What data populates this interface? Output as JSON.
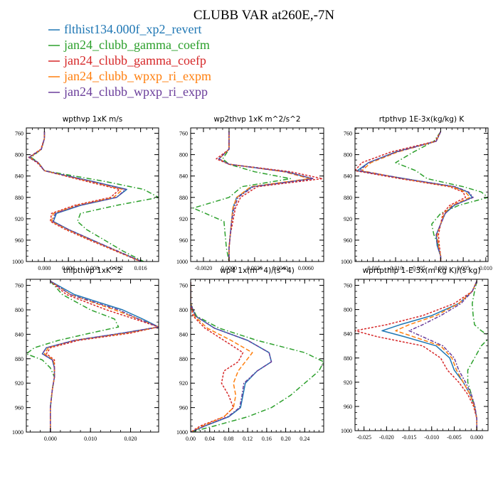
{
  "title": "CLUBB VAR at260E,-7N",
  "legend": [
    {
      "label": "flthist134.000f_xp2_revert",
      "color": "#1f77b4"
    },
    {
      "label": "jan24_clubb_gamma_coefm",
      "color": "#2ca02c"
    },
    {
      "label": "jan24_clubb_gamma_coefp",
      "color": "#d62728"
    },
    {
      "label": "jan24_clubb_wpxp_ri_expm",
      "color": "#ff7f0e"
    },
    {
      "label": "jan24_clubb_wpxp_ri_expp",
      "color": "#6a3d9a"
    }
  ],
  "chart_data": [
    {
      "type": "line",
      "title": "wpthvp  1xK m/s",
      "xlim": [
        -0.003,
        0.019
      ],
      "ylim": [
        1000,
        750
      ],
      "xticks": [
        "0.000",
        "0.004",
        "0.008",
        "0.012",
        "0.016"
      ],
      "xtick_values": [
        0.0,
        0.004,
        0.008,
        0.012,
        0.016
      ],
      "yticks": [
        "760",
        "800",
        "840",
        "880",
        "920",
        "960",
        "1000"
      ],
      "ytick_values": [
        760,
        800,
        840,
        880,
        920,
        960,
        1000
      ],
      "p": [
        757,
        770,
        790,
        805,
        815,
        830,
        850,
        865,
        880,
        895,
        910,
        925,
        940,
        960,
        980,
        1000
      ],
      "series": [
        {
          "values": [
            0.0,
            0.0,
            -0.0005,
            -0.0025,
            -0.001,
            0.0,
            0.008,
            0.0137,
            0.012,
            0.006,
            0.002,
            0.0015,
            0.004,
            0.008,
            0.012,
            0.0162
          ]
        },
        {
          "values": [
            0.0,
            0.0,
            -0.0005,
            -0.0022,
            -0.001,
            0.0,
            0.01,
            0.0165,
            0.019,
            0.012,
            0.006,
            0.0055,
            0.007,
            0.01,
            0.013,
            0.0165
          ]
        },
        {
          "values": [
            0.0,
            0.0,
            -0.0006,
            -0.0026,
            -0.0012,
            0.0,
            0.007,
            0.0125,
            0.011,
            0.005,
            0.0012,
            0.001,
            0.0035,
            0.0075,
            0.0118,
            0.016
          ]
        },
        {
          "values": [
            0.0,
            0.0,
            -0.0005,
            -0.0024,
            -0.001,
            0.0,
            0.0075,
            0.013,
            0.0115,
            0.0055,
            0.0015,
            0.0012,
            0.0038,
            0.0078,
            0.012,
            0.0161
          ]
        },
        {
          "values": [
            0.0,
            0.0,
            -0.0005,
            -0.0025,
            -0.001,
            0.0,
            0.0078,
            0.0135,
            0.012,
            0.0058,
            0.0018,
            0.0014,
            0.004,
            0.008,
            0.0121,
            0.0162
          ]
        }
      ]
    },
    {
      "type": "line",
      "title": "wp2thvp  1xK m^2/s^2",
      "xlim": [
        -0.003,
        0.0074
      ],
      "ylim": [
        1000,
        750
      ],
      "xticks": [
        "-0.0020",
        "0.0000",
        "0.0020",
        "0.0040",
        "0.0060"
      ],
      "xtick_values": [
        -0.002,
        0.0,
        0.002,
        0.004,
        0.006
      ],
      "yticks": [
        "760",
        "800",
        "840",
        "880",
        "920",
        "960",
        "1000"
      ],
      "ytick_values": [
        760,
        800,
        840,
        880,
        920,
        960,
        1000
      ],
      "p": [
        757,
        790,
        808,
        818,
        832,
        845,
        860,
        880,
        900,
        925,
        950,
        975,
        1000
      ],
      "series": [
        {
          "values": [
            0.0,
            0.0,
            -0.0008,
            0.0,
            0.0045,
            0.0065,
            0.0018,
            0.0006,
            0.0003,
            0.0002,
            0.0001,
            0.0,
            0.0
          ]
        },
        {
          "values": [
            0.0,
            0.0,
            -0.0005,
            0.0,
            0.002,
            0.0048,
            0.001,
            0.0,
            -0.0028,
            -0.0004,
            -0.0003,
            -0.0002,
            0.0
          ]
        },
        {
          "values": [
            0.0,
            0.0,
            -0.001,
            0.0,
            0.0048,
            0.0073,
            0.0022,
            0.0009,
            0.0005,
            0.0003,
            0.0001,
            0.0,
            0.0
          ]
        },
        {
          "values": [
            0.0,
            0.0,
            -0.0008,
            0.0,
            0.0043,
            0.0063,
            0.0017,
            0.0006,
            0.0003,
            0.0002,
            0.0001,
            0.0,
            0.0
          ]
        },
        {
          "values": [
            0.0,
            0.0,
            -0.0008,
            0.0,
            0.0044,
            0.0066,
            0.0019,
            0.0007,
            0.0004,
            0.0002,
            0.0001,
            0.0,
            0.0
          ]
        }
      ]
    },
    {
      "type": "line",
      "title": "rtpthvp  1E-3x(kg/kg) K",
      "xlim": [
        -0.019,
        0.0105
      ],
      "ylim": [
        1000,
        750
      ],
      "xticks": [
        "-0.015",
        "-0.010",
        "-0.005",
        "0.000",
        "0.005",
        "0.010"
      ],
      "xtick_values": [
        -0.015,
        -0.01,
        -0.005,
        0.0,
        0.005,
        0.01
      ],
      "yticks": [
        "760",
        "800",
        "840",
        "880",
        "920",
        "960",
        "1000"
      ],
      "ytick_values": [
        760,
        800,
        840,
        880,
        920,
        960,
        1000
      ],
      "p": [
        757,
        775,
        795,
        815,
        830,
        845,
        860,
        870,
        880,
        895,
        910,
        930,
        950,
        970,
        990,
        1000
      ],
      "series": [
        {
          "values": [
            0.0,
            -0.001,
            -0.01,
            -0.016,
            -0.0185,
            -0.008,
            0.003,
            0.006,
            0.007,
            0.003,
            0.001,
            0.0,
            -0.001,
            -0.0008,
            0.0,
            0.0
          ]
        },
        {
          "values": [
            0.0,
            -0.0015,
            -0.006,
            -0.01,
            -0.0055,
            -0.003,
            0.005,
            0.009,
            0.0105,
            0.004,
            0.0,
            -0.002,
            -0.0015,
            -0.0005,
            0.0,
            0.0
          ]
        },
        {
          "values": [
            0.0,
            -0.0012,
            -0.011,
            -0.0175,
            -0.019,
            -0.009,
            0.002,
            0.005,
            0.0055,
            0.002,
            0.0005,
            0.0,
            -0.0005,
            -0.0003,
            0.0,
            0.0
          ]
        },
        {
          "values": [
            0.0,
            -0.001,
            -0.0095,
            -0.0155,
            -0.0175,
            -0.0085,
            0.0025,
            0.0055,
            0.0065,
            0.0025,
            0.0008,
            0.0,
            -0.0008,
            -0.0005,
            0.0,
            0.0
          ]
        },
        {
          "values": [
            0.0,
            -0.001,
            -0.0098,
            -0.016,
            -0.018,
            -0.0082,
            0.0032,
            0.0062,
            0.0072,
            0.0028,
            0.001,
            0.0,
            -0.001,
            -0.0007,
            0.0,
            0.0
          ]
        }
      ]
    },
    {
      "type": "line",
      "title": "thlpthvp  1xK^2",
      "xlim": [
        -0.006,
        0.027
      ],
      "ylim": [
        1000,
        750
      ],
      "xticks": [
        "0.000",
        "0.010",
        "0.020"
      ],
      "xtick_values": [
        0.0,
        0.01,
        0.02
      ],
      "yticks": [
        "760",
        "800",
        "840",
        "880",
        "920",
        "960",
        "1000"
      ],
      "ytick_values": [
        760,
        800,
        840,
        880,
        920,
        960,
        1000
      ],
      "p": [
        753,
        775,
        800,
        815,
        828,
        838,
        850,
        862,
        872,
        882,
        895,
        910,
        930,
        960,
        990,
        1000
      ],
      "series": [
        {
          "values": [
            0.0,
            0.006,
            0.018,
            0.023,
            0.027,
            0.018,
            0.006,
            -0.001,
            -0.002,
            0.0005,
            0.001,
            0.001,
            0.0005,
            0.0,
            0.0,
            0.0
          ]
        },
        {
          "values": [
            0.0,
            0.003,
            0.01,
            0.016,
            0.017,
            0.01,
            0.002,
            -0.004,
            -0.006,
            -0.002,
            0.0,
            0.001,
            0.0005,
            0.0,
            0.0,
            0.0
          ]
        },
        {
          "values": [
            0.0,
            0.004,
            0.014,
            0.021,
            0.027,
            0.02,
            0.007,
            0.0,
            -0.001,
            0.001,
            0.001,
            0.001,
            0.0005,
            0.0,
            0.0,
            0.0
          ]
        },
        {
          "values": [
            0.0,
            0.005,
            0.016,
            0.022,
            0.027,
            0.019,
            0.006,
            -0.0005,
            -0.0015,
            0.0008,
            0.001,
            0.001,
            0.0005,
            0.0,
            0.0,
            0.0
          ]
        },
        {
          "values": [
            0.0,
            0.005,
            0.017,
            0.022,
            0.027,
            0.018,
            0.006,
            -0.001,
            -0.002,
            0.0005,
            0.001,
            0.001,
            0.0005,
            0.0,
            0.0,
            0.0
          ]
        }
      ]
    },
    {
      "type": "line",
      "title": "wp4  1x(m^4)/(s^4)",
      "xlim": [
        0.0,
        0.28
      ],
      "ylim": [
        1000,
        750
      ],
      "xticks": [
        "0.00",
        "0.04",
        "0.08",
        "0.12",
        "0.16",
        "0.20",
        "0.24"
      ],
      "xtick_values": [
        0.0,
        0.04,
        0.08,
        0.12,
        0.16,
        0.2,
        0.24
      ],
      "yticks": [
        "760",
        "800",
        "840",
        "880",
        "920",
        "960",
        "1000"
      ],
      "ytick_values": [
        760,
        800,
        840,
        880,
        920,
        960,
        1000
      ],
      "p": [
        755,
        790,
        810,
        830,
        850,
        870,
        885,
        900,
        920,
        940,
        960,
        975,
        990,
        1000
      ],
      "series": [
        {
          "values": [
            0.0,
            0.0,
            0.01,
            0.05,
            0.12,
            0.165,
            0.17,
            0.14,
            0.115,
            0.11,
            0.105,
            0.08,
            0.03,
            0.0
          ]
        },
        {
          "values": [
            0.0,
            0.0,
            0.012,
            0.06,
            0.14,
            0.24,
            0.28,
            0.27,
            0.24,
            0.21,
            0.17,
            0.12,
            0.05,
            0.0
          ]
        },
        {
          "values": [
            0.0,
            0.0,
            0.005,
            0.03,
            0.07,
            0.11,
            0.1,
            0.07,
            0.065,
            0.08,
            0.09,
            0.07,
            0.02,
            0.0
          ]
        },
        {
          "values": [
            0.0,
            0.0,
            0.008,
            0.035,
            0.085,
            0.13,
            0.115,
            0.1,
            0.09,
            0.095,
            0.09,
            0.07,
            0.025,
            0.0
          ]
        },
        {
          "values": [
            0.0,
            0.0,
            0.01,
            0.05,
            0.12,
            0.165,
            0.17,
            0.14,
            0.112,
            0.108,
            0.103,
            0.078,
            0.03,
            0.0
          ]
        }
      ]
    },
    {
      "type": "line",
      "title": "wprtpthlp  1-E-3x(m kg K)/(s kg)",
      "xlim": [
        -0.027,
        0.0025
      ],
      "ylim": [
        1000,
        750
      ],
      "xticks": [
        "-0.025",
        "-0.020",
        "-0.015",
        "-0.010",
        "-0.005",
        "0.000"
      ],
      "xtick_values": [
        -0.025,
        -0.02,
        -0.015,
        -0.01,
        -0.005,
        0.0
      ],
      "yticks": [
        "760",
        "800",
        "840",
        "880",
        "920",
        "960",
        "1000"
      ],
      "ytick_values": [
        760,
        800,
        840,
        880,
        920,
        960,
        1000
      ],
      "p": [
        753,
        770,
        790,
        810,
        825,
        835,
        845,
        860,
        880,
        900,
        920,
        940,
        960,
        980,
        1000
      ],
      "series": [
        {
          "values": [
            0.0,
            -0.001,
            -0.004,
            -0.01,
            -0.017,
            -0.021,
            -0.016,
            -0.009,
            -0.006,
            -0.005,
            -0.003,
            -0.0015,
            -0.0005,
            0.0,
            0.0
          ]
        },
        {
          "values": [
            0.0,
            -0.0005,
            -0.001,
            -0.0008,
            -0.0005,
            0.001,
            0.003,
            0.001,
            -0.0005,
            -0.002,
            -0.002,
            -0.0012,
            -0.0005,
            0.0,
            0.0
          ]
        },
        {
          "values": [
            0.0,
            -0.001,
            -0.005,
            -0.012,
            -0.02,
            -0.027,
            -0.022,
            -0.012,
            -0.008,
            -0.0065,
            -0.004,
            -0.002,
            -0.0007,
            0.0,
            0.0
          ]
        },
        {
          "values": [
            0.0,
            -0.001,
            -0.004,
            -0.009,
            -0.015,
            -0.018,
            -0.014,
            -0.008,
            -0.0055,
            -0.0045,
            -0.003,
            -0.0015,
            -0.0005,
            0.0,
            0.0
          ]
        },
        {
          "values": [
            0.0,
            -0.001,
            -0.0035,
            -0.008,
            -0.012,
            -0.015,
            -0.012,
            -0.0075,
            -0.005,
            -0.004,
            -0.0025,
            -0.0012,
            -0.0004,
            0.0,
            0.0
          ]
        }
      ]
    }
  ]
}
